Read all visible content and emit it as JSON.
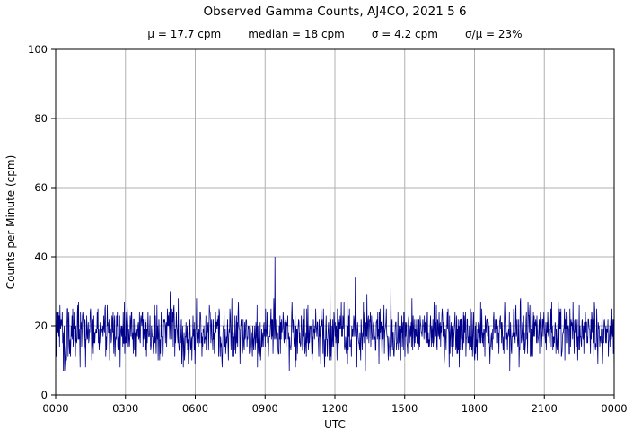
{
  "chart_data": {
    "type": "line",
    "title": "Observed Gamma Counts, AJ4CO, 2021 5 6",
    "subtitle_parts": [
      "μ = 17.7 cpm",
      "median = 18 cpm",
      "σ = 4.2 cpm",
      "σ/μ = 23%"
    ],
    "xlabel": "UTC",
    "ylabel": "Counts per Minute (cpm)",
    "ylim": [
      0,
      100
    ],
    "yticks": [
      0,
      20,
      40,
      60,
      80,
      100
    ],
    "xticks_minutes": [
      0,
      180,
      360,
      540,
      720,
      900,
      1080,
      1260,
      1440
    ],
    "xticklabels": [
      "0000",
      "0300",
      "0600",
      "0900",
      "1200",
      "1500",
      "1800",
      "2100",
      "0000"
    ],
    "grid": true,
    "legend": "none",
    "series_description": "1-minute observed gamma count samples over 24 hours, noisy band centered near 18 cpm",
    "stats": {
      "mu_cpm": 17.7,
      "median_cpm": 18,
      "sigma_cpm": 4.2,
      "sigma_over_mu_pct": 23
    },
    "n_samples": 1440,
    "noise_clamp_cpm": [
      5,
      33
    ],
    "notable_points": [
      {
        "minute": 20,
        "value": 7
      },
      {
        "minute": 565,
        "value": 40
      },
      {
        "minute": 707,
        "value": 30
      },
      {
        "minute": 772,
        "value": 34
      },
      {
        "minute": 864,
        "value": 33
      },
      {
        "minute": 1040,
        "value": 8
      },
      {
        "minute": 1439,
        "value": 4
      }
    ],
    "colors": {
      "line": "#00008b",
      "grid": "#b0b0b0",
      "frame": "#000000",
      "text": "#000000",
      "background": "#ffffff"
    }
  }
}
